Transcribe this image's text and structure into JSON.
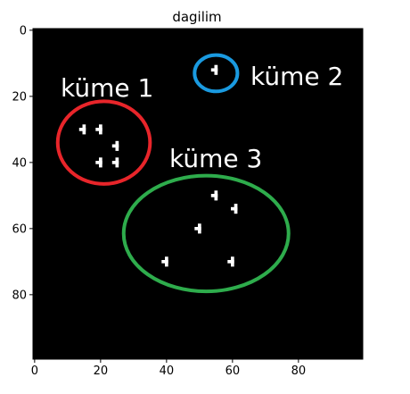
{
  "chart_data": {
    "type": "heatmap",
    "title": "dagilim",
    "xlim": [
      0,
      99
    ],
    "ylim": [
      99,
      0
    ],
    "xticks": [
      0,
      20,
      40,
      60,
      80
    ],
    "yticks": [
      0,
      20,
      40,
      60,
      80
    ],
    "background_color": "#000000",
    "pixel_color": "#ffffff",
    "points": [
      {
        "x": 15,
        "y": 30
      },
      {
        "x": 20,
        "y": 30
      },
      {
        "x": 25,
        "y": 35
      },
      {
        "x": 20,
        "y": 40
      },
      {
        "x": 25,
        "y": 40
      },
      {
        "x": 55,
        "y": 12
      },
      {
        "x": 55,
        "y": 50
      },
      {
        "x": 61,
        "y": 54
      },
      {
        "x": 50,
        "y": 60
      },
      {
        "x": 40,
        "y": 70
      },
      {
        "x": 60,
        "y": 70
      }
    ],
    "clusters": [
      {
        "label": "küme 1",
        "color": "#e8252a",
        "center": [
          21,
          34
        ],
        "radius": [
          14,
          12.5
        ]
      },
      {
        "label": "küme 2",
        "color": "#1a9ae0",
        "center": [
          55,
          13
        ],
        "radius": [
          6.5,
          5.5
        ]
      },
      {
        "label": "küme 3",
        "color": "#2eac4c",
        "center": [
          52,
          61.5
        ],
        "radius": [
          25,
          17.5
        ]
      }
    ]
  }
}
